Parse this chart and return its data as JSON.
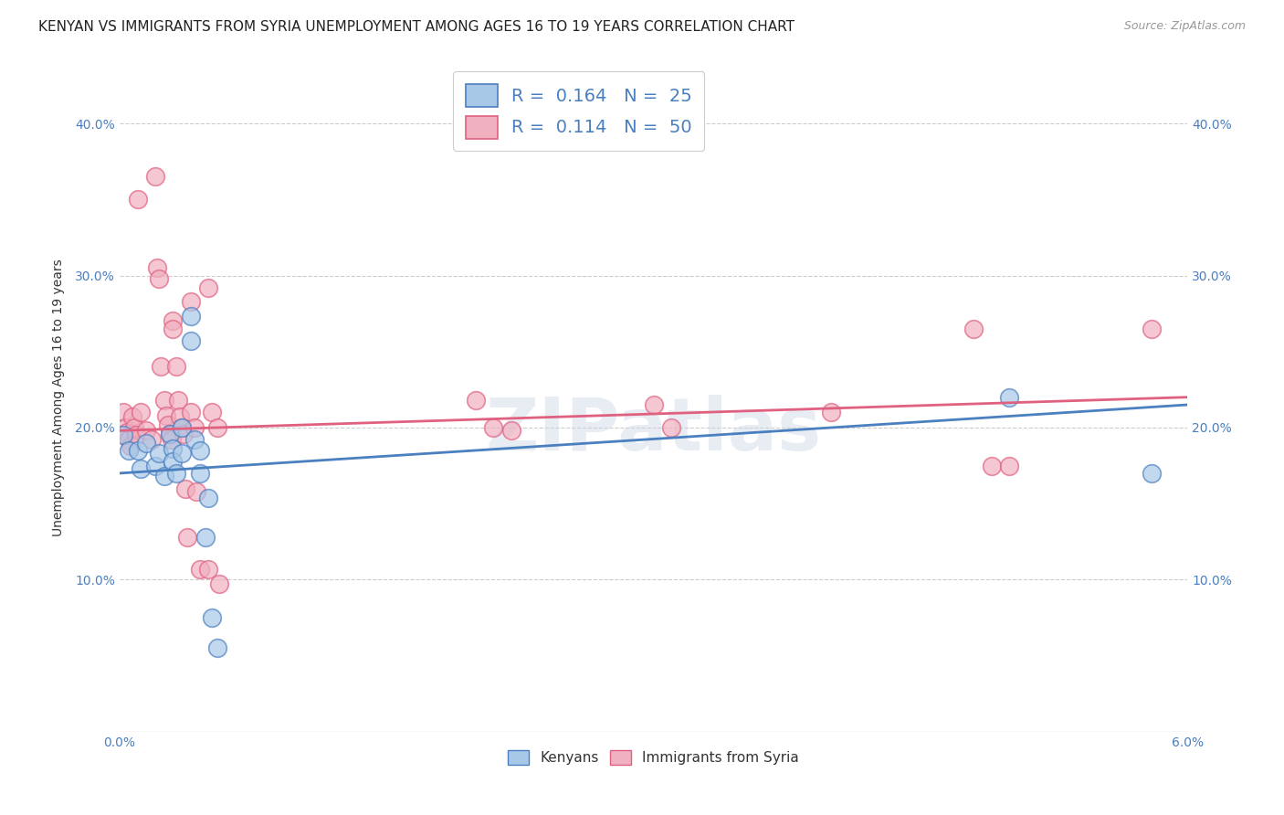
{
  "title": "KENYAN VS IMMIGRANTS FROM SYRIA UNEMPLOYMENT AMONG AGES 16 TO 19 YEARS CORRELATION CHART",
  "source": "Source: ZipAtlas.com",
  "ylabel": "Unemployment Among Ages 16 to 19 years",
  "xlim": [
    0.0,
    0.06
  ],
  "ylim": [
    0.0,
    0.44
  ],
  "x_ticks": [
    0.0,
    0.01,
    0.02,
    0.03,
    0.04,
    0.05,
    0.06
  ],
  "x_tick_labels": [
    "0.0%",
    "",
    "",
    "",
    "",
    "",
    "6.0%"
  ],
  "y_ticks": [
    0.0,
    0.1,
    0.2,
    0.3,
    0.4
  ],
  "y_tick_labels": [
    "",
    "10.0%",
    "20.0%",
    "30.0%",
    "40.0%"
  ],
  "watermark": "ZIPatlas",
  "kenyans": {
    "R": 0.164,
    "N": 25,
    "scatter_color": "#a8c8e8",
    "line_color": "#4a7fc0",
    "points": [
      [
        0.0002,
        0.195
      ],
      [
        0.0005,
        0.185
      ],
      [
        0.001,
        0.185
      ],
      [
        0.0012,
        0.173
      ],
      [
        0.0015,
        0.19
      ],
      [
        0.002,
        0.175
      ],
      [
        0.0022,
        0.183
      ],
      [
        0.0025,
        0.168
      ],
      [
        0.0028,
        0.196
      ],
      [
        0.003,
        0.186
      ],
      [
        0.003,
        0.178
      ],
      [
        0.0032,
        0.17
      ],
      [
        0.0035,
        0.2
      ],
      [
        0.0035,
        0.183
      ],
      [
        0.004,
        0.273
      ],
      [
        0.004,
        0.257
      ],
      [
        0.0042,
        0.192
      ],
      [
        0.0045,
        0.185
      ],
      [
        0.0045,
        0.17
      ],
      [
        0.0048,
        0.128
      ],
      [
        0.005,
        0.154
      ],
      [
        0.0052,
        0.075
      ],
      [
        0.0055,
        0.055
      ],
      [
        0.05,
        0.22
      ],
      [
        0.058,
        0.17
      ]
    ]
  },
  "syrians": {
    "R": 0.114,
    "N": 50,
    "scatter_color": "#f0b0c0",
    "line_color": "#e06080",
    "points": [
      [
        0.0002,
        0.21
      ],
      [
        0.0003,
        0.2
      ],
      [
        0.0004,
        0.197
      ],
      [
        0.0005,
        0.192
      ],
      [
        0.0006,
        0.188
      ],
      [
        0.0007,
        0.207
      ],
      [
        0.0008,
        0.2
      ],
      [
        0.0009,
        0.195
      ],
      [
        0.001,
        0.35
      ],
      [
        0.0012,
        0.21
      ],
      [
        0.0015,
        0.198
      ],
      [
        0.0018,
        0.192
      ],
      [
        0.002,
        0.365
      ],
      [
        0.0021,
        0.305
      ],
      [
        0.0022,
        0.298
      ],
      [
        0.0023,
        0.24
      ],
      [
        0.0025,
        0.218
      ],
      [
        0.0026,
        0.208
      ],
      [
        0.0027,
        0.202
      ],
      [
        0.0028,
        0.196
      ],
      [
        0.0029,
        0.192
      ],
      [
        0.003,
        0.27
      ],
      [
        0.003,
        0.265
      ],
      [
        0.0032,
        0.24
      ],
      [
        0.0033,
        0.218
      ],
      [
        0.0034,
        0.207
      ],
      [
        0.0035,
        0.2
      ],
      [
        0.0036,
        0.196
      ],
      [
        0.0037,
        0.16
      ],
      [
        0.0038,
        0.128
      ],
      [
        0.004,
        0.283
      ],
      [
        0.004,
        0.21
      ],
      [
        0.0042,
        0.2
      ],
      [
        0.0043,
        0.158
      ],
      [
        0.0045,
        0.107
      ],
      [
        0.005,
        0.107
      ],
      [
        0.005,
        0.292
      ],
      [
        0.0052,
        0.21
      ],
      [
        0.0055,
        0.2
      ],
      [
        0.0056,
        0.097
      ],
      [
        0.02,
        0.218
      ],
      [
        0.021,
        0.2
      ],
      [
        0.022,
        0.198
      ],
      [
        0.03,
        0.215
      ],
      [
        0.031,
        0.2
      ],
      [
        0.04,
        0.21
      ],
      [
        0.048,
        0.265
      ],
      [
        0.049,
        0.175
      ],
      [
        0.05,
        0.175
      ],
      [
        0.058,
        0.265
      ]
    ]
  },
  "background_color": "#ffffff",
  "grid_color": "#cccccc",
  "title_fontsize": 11,
  "axis_label_fontsize": 10,
  "tick_fontsize": 10,
  "legend_fontsize": 13
}
